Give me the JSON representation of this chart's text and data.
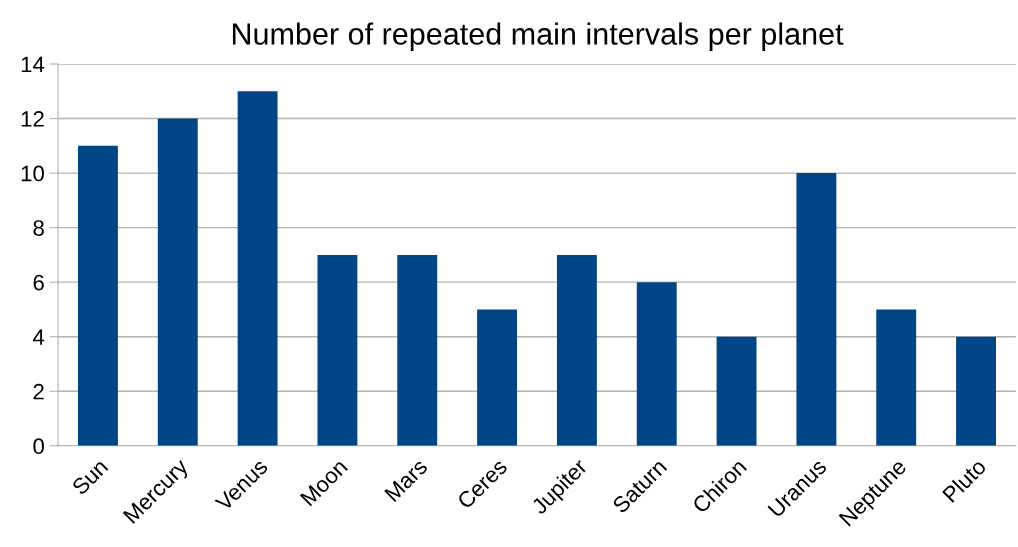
{
  "chart_data": {
    "type": "bar",
    "title": "Number of repeated main intervals per planet",
    "categories": [
      "Sun",
      "Mercury",
      "Venus",
      "Moon",
      "Mars",
      "Ceres",
      "Jupiter",
      "Saturn",
      "Chiron",
      "Uranus",
      "Neptune",
      "Pluto"
    ],
    "values": [
      11,
      12,
      13,
      7,
      7,
      5,
      7,
      6,
      4,
      10,
      5,
      4
    ],
    "color": "#004586",
    "ylim": [
      0,
      14
    ],
    "yticks": [
      0,
      2,
      4,
      6,
      8,
      10,
      12,
      14
    ],
    "grid": "y",
    "legend": false
  }
}
